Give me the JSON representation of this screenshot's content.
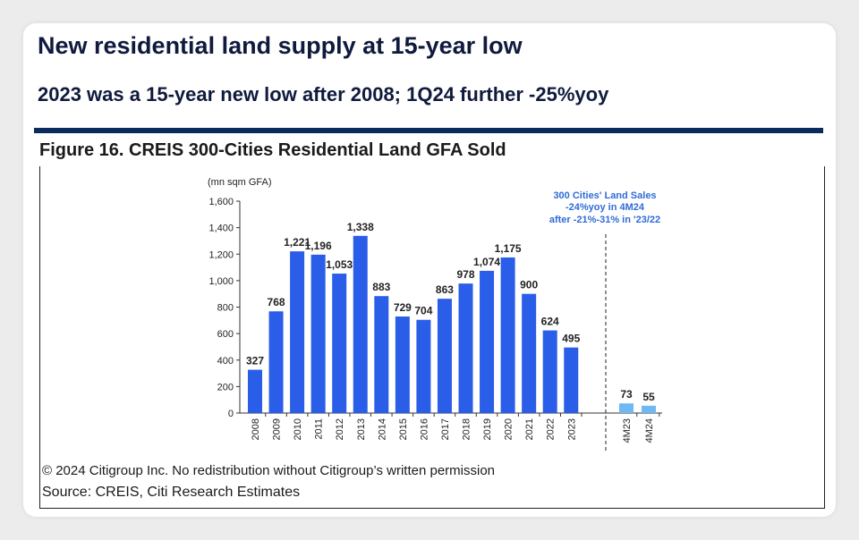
{
  "header": {
    "title": "New residential land supply at 15-year low",
    "subtitle": "2023 was a 15-year new low after 2008; 1Q24 further -25%yoy"
  },
  "figure": {
    "title": "Figure 16. CREIS 300-Cities Residential Land GFA Sold",
    "copyright": "© 2024 Citigroup Inc. No redistribution without Citigroup’s written permission",
    "source": "Source: CREIS, Citi Research Estimates"
  },
  "colors": {
    "annual_bar": "#2a5ee8",
    "ytd_bar": "#6fb8f2",
    "annotation": "#2f6bd8",
    "title": "#0f1a3d",
    "rule": "#0b2a5e"
  },
  "chart_data": {
    "type": "bar",
    "unit_label": "(mn sqm GFA)",
    "ylim": [
      0,
      1600
    ],
    "yticks": [
      0,
      200,
      400,
      600,
      800,
      1000,
      1200,
      1400,
      1600
    ],
    "ytick_labels": [
      "0",
      "200",
      "400",
      "600",
      "800",
      "1,000",
      "1,200",
      "1,400",
      "1,600"
    ],
    "grid": false,
    "categories": [
      "2008",
      "2009",
      "2010",
      "2011",
      "2012",
      "2013",
      "2014",
      "2015",
      "2016",
      "2017",
      "2018",
      "2019",
      "2020",
      "2021",
      "2022",
      "2023",
      "4M23",
      "4M24"
    ],
    "values": [
      327,
      768,
      1221,
      1196,
      1053,
      1338,
      883,
      729,
      704,
      863,
      978,
      1074,
      1175,
      900,
      624,
      495,
      73,
      55
    ],
    "value_labels": [
      "327",
      "768",
      "1,221",
      "1,196",
      "1,053",
      "1,338",
      "883",
      "729",
      "704",
      "863",
      "978",
      "1,074",
      "1,175",
      "900",
      "624",
      "495",
      "73",
      "55"
    ],
    "series_group": [
      "annual",
      "annual",
      "annual",
      "annual",
      "annual",
      "annual",
      "annual",
      "annual",
      "annual",
      "annual",
      "annual",
      "annual",
      "annual",
      "annual",
      "annual",
      "annual",
      "ytd",
      "ytd"
    ],
    "divider": "dashed line between 2023 and 4M23",
    "annotation": [
      "300 Cities' Land Sales",
      "-24%yoy in 4M24",
      "after -21%-31% in '23/22"
    ]
  }
}
